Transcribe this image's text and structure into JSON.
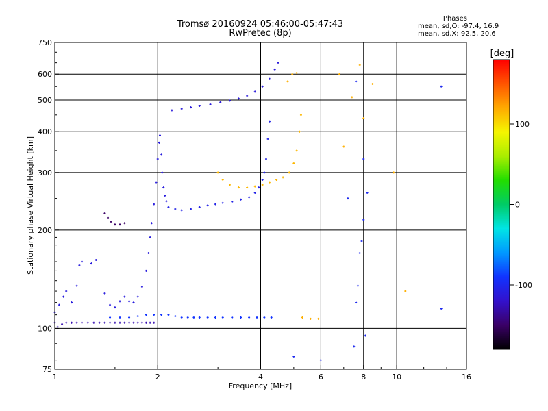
{
  "header": {
    "title": "Tromsø 20160924 05:46:00-05:47:43",
    "subtitle": "RwPretec (8p)"
  },
  "phases": {
    "heading": "Phases",
    "line_o": "mean, sd,O: -97.4, 16.9",
    "line_x": "mean, sd,X:  92.5, 20.6"
  },
  "colorbar": {
    "unit": "[deg]",
    "ticks": [
      {
        "value": 100,
        "label": "100"
      },
      {
        "value": 0,
        "label": "0"
      },
      {
        "value": -100,
        "label": "-100"
      }
    ],
    "range": [
      -180,
      180
    ],
    "colors": [
      "#000000",
      "#3a0066",
      "#3311cc",
      "#1133ff",
      "#0099ff",
      "#00e5e5",
      "#00cc66",
      "#22dd00",
      "#aaee00",
      "#f5f500",
      "#ffaa00",
      "#ff5500",
      "#ff0000"
    ]
  },
  "chart_data": {
    "type": "scatter",
    "title": "Tromsø 20160924 05:46:00-05:47:43",
    "subtitle": "RwPretec (8p)",
    "xlabel": "Frequency [MHz]",
    "ylabel": "Stationary phase Virtual Height [km]",
    "x_scale": "log2",
    "y_scale": "log",
    "xlim": [
      1,
      16
    ],
    "ylim": [
      75,
      750
    ],
    "x_ticks": [
      {
        "value": 1,
        "label": "1"
      },
      {
        "value": 2,
        "label": "2"
      },
      {
        "value": 4,
        "label": "4"
      },
      {
        "value": 6,
        "label": "6"
      },
      {
        "value": 8,
        "label": "8"
      },
      {
        "value": 10,
        "label": "10"
      },
      {
        "value": 16,
        "label": "16"
      }
    ],
    "y_ticks": [
      {
        "value": 75,
        "label": "75"
      },
      {
        "value": 100,
        "label": "100"
      },
      {
        "value": 200,
        "label": "200"
      },
      {
        "value": 300,
        "label": "300"
      },
      {
        "value": 400,
        "label": "400"
      },
      {
        "value": 500,
        "label": "500"
      },
      {
        "value": 600,
        "label": "600"
      },
      {
        "value": 750,
        "label": "750"
      }
    ],
    "grid_x": [
      2,
      4,
      6,
      8,
      10
    ],
    "grid_y": [
      100,
      200,
      300,
      400,
      500,
      600
    ],
    "color_by": "phase [deg]",
    "series": [
      {
        "points": [
          [
            1.0,
            104
          ],
          [
            1.02,
            101
          ],
          [
            1.05,
            103
          ],
          [
            1.08,
            104
          ],
          [
            1.12,
            104
          ],
          [
            1.16,
            104
          ],
          [
            1.2,
            104
          ],
          [
            1.25,
            104
          ],
          [
            1.3,
            104
          ],
          [
            1.35,
            104
          ],
          [
            1.4,
            104
          ],
          [
            1.45,
            104
          ],
          [
            1.5,
            104
          ],
          [
            1.55,
            104
          ],
          [
            1.6,
            104
          ],
          [
            1.65,
            104
          ],
          [
            1.7,
            104
          ],
          [
            1.75,
            104
          ],
          [
            1.8,
            104
          ],
          [
            1.85,
            104
          ],
          [
            1.9,
            104
          ],
          [
            1.95,
            104
          ]
        ],
        "phase": -128
      },
      {
        "points": [
          [
            1.0,
            112
          ],
          [
            1.03,
            118
          ],
          [
            1.06,
            125
          ],
          [
            1.08,
            130
          ],
          [
            1.12,
            120
          ],
          [
            1.16,
            135
          ],
          [
            1.18,
            156
          ],
          [
            1.2,
            160
          ],
          [
            1.28,
            158
          ],
          [
            1.32,
            162
          ],
          [
            1.4,
            128
          ],
          [
            1.45,
            118
          ],
          [
            1.5,
            116
          ],
          [
            1.55,
            121
          ],
          [
            1.6,
            125
          ],
          [
            1.65,
            121
          ],
          [
            1.7,
            120
          ],
          [
            1.75,
            125
          ],
          [
            1.8,
            134
          ],
          [
            1.85,
            150
          ],
          [
            1.88,
            170
          ],
          [
            1.9,
            190
          ],
          [
            1.92,
            210
          ],
          [
            1.95,
            240
          ],
          [
            1.98,
            280
          ],
          [
            2.0,
            330
          ],
          [
            2.02,
            370
          ],
          [
            2.03,
            390
          ],
          [
            2.05,
            340
          ],
          [
            2.06,
            300
          ],
          [
            2.08,
            270
          ],
          [
            2.1,
            255
          ],
          [
            2.12,
            245
          ]
        ],
        "phase": -110
      },
      {
        "points": [
          [
            1.4,
            225
          ],
          [
            1.43,
            218
          ],
          [
            1.46,
            212
          ],
          [
            1.5,
            208
          ],
          [
            1.55,
            208
          ],
          [
            1.6,
            210
          ]
        ],
        "phase": -150
      },
      {
        "points": [
          [
            1.45,
            108
          ],
          [
            1.55,
            108
          ],
          [
            1.65,
            108
          ],
          [
            1.75,
            109
          ],
          [
            1.85,
            110
          ],
          [
            1.95,
            110
          ],
          [
            2.05,
            110
          ],
          [
            2.15,
            110
          ],
          [
            2.25,
            109
          ],
          [
            2.35,
            108
          ],
          [
            2.45,
            108
          ],
          [
            2.55,
            108
          ],
          [
            2.65,
            108
          ],
          [
            2.8,
            108
          ],
          [
            2.95,
            108
          ],
          [
            3.1,
            108
          ],
          [
            3.3,
            108
          ],
          [
            3.5,
            108
          ],
          [
            3.7,
            108
          ],
          [
            3.9,
            108
          ],
          [
            4.1,
            108
          ],
          [
            4.3,
            108
          ]
        ],
        "phase": -90
      },
      {
        "points": [
          [
            2.15,
            235
          ],
          [
            2.25,
            232
          ],
          [
            2.35,
            230
          ],
          [
            2.5,
            232
          ],
          [
            2.65,
            235
          ],
          [
            2.8,
            238
          ],
          [
            2.95,
            240
          ],
          [
            3.1,
            242
          ],
          [
            3.3,
            244
          ],
          [
            3.5,
            248
          ],
          [
            3.7,
            252
          ],
          [
            3.85,
            260
          ],
          [
            3.95,
            270
          ],
          [
            4.05,
            285
          ],
          [
            4.1,
            300
          ],
          [
            4.15,
            330
          ],
          [
            4.2,
            380
          ],
          [
            4.25,
            430
          ]
        ],
        "phase": -105
      },
      {
        "points": [
          [
            2.2,
            465
          ],
          [
            2.35,
            470
          ],
          [
            2.5,
            475
          ],
          [
            2.65,
            480
          ],
          [
            2.85,
            485
          ],
          [
            3.05,
            492
          ],
          [
            3.25,
            498
          ],
          [
            3.45,
            505
          ],
          [
            3.65,
            515
          ],
          [
            3.85,
            530
          ],
          [
            4.05,
            550
          ],
          [
            4.25,
            580
          ],
          [
            4.4,
            620
          ],
          [
            4.5,
            650
          ]
        ],
        "phase": -112
      },
      {
        "points": [
          [
            3.0,
            300
          ],
          [
            3.1,
            285
          ],
          [
            3.25,
            275
          ],
          [
            3.45,
            270
          ],
          [
            3.65,
            270
          ],
          [
            3.85,
            272
          ],
          [
            4.05,
            275
          ],
          [
            4.25,
            280
          ],
          [
            4.45,
            285
          ],
          [
            4.65,
            290
          ],
          [
            4.85,
            300
          ],
          [
            5.0,
            320
          ],
          [
            5.1,
            350
          ],
          [
            5.2,
            400
          ],
          [
            5.25,
            450
          ]
        ],
        "phase": 115
      },
      {
        "points": [
          [
            4.8,
            570
          ],
          [
            4.95,
            600
          ],
          [
            5.1,
            605
          ],
          [
            5.3,
            108
          ],
          [
            5.6,
            107
          ],
          [
            5.9,
            107
          ],
          [
            6.8,
            600
          ],
          [
            7.0,
            360
          ],
          [
            7.4,
            510
          ],
          [
            7.8,
            640
          ],
          [
            8.0,
            440
          ],
          [
            8.5,
            560
          ],
          [
            9.8,
            300
          ],
          [
            10.6,
            130
          ]
        ],
        "phase": 118
      },
      {
        "points": [
          [
            7.6,
            570
          ],
          [
            8.0,
            330
          ],
          [
            8.0,
            215
          ],
          [
            7.9,
            185
          ],
          [
            7.8,
            170
          ],
          [
            7.7,
            135
          ],
          [
            7.6,
            120
          ],
          [
            8.1,
            95
          ],
          [
            7.5,
            88
          ],
          [
            6.0,
            80
          ],
          [
            5.0,
            82
          ],
          [
            13.5,
            115
          ],
          [
            13.5,
            550
          ],
          [
            7.2,
            250
          ],
          [
            8.2,
            260
          ]
        ],
        "phase": -100
      }
    ]
  }
}
